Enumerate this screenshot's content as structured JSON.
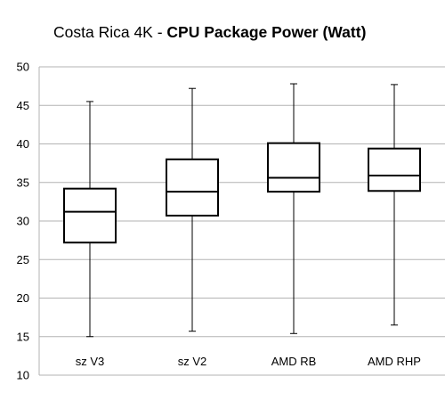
{
  "title": {
    "regular": "Costa Rica 4K - ",
    "bold": "CPU Package Power (Watt)"
  },
  "chart_data": {
    "type": "boxplot",
    "title": "Costa Rica 4K - CPU Package Power (Watt)",
    "xlabel": "",
    "ylabel": "",
    "ylim": [
      10,
      50
    ],
    "yticks": [
      10,
      15,
      20,
      25,
      30,
      35,
      40,
      45,
      50
    ],
    "grid": true,
    "legend": "none",
    "categories": [
      "sz V3",
      "sz V2",
      "AMD RB",
      "AMD RHP"
    ],
    "boxes": [
      {
        "min": 15.0,
        "q1": 27.2,
        "median": 31.2,
        "q3": 34.2,
        "max": 45.5
      },
      {
        "min": 15.7,
        "q1": 30.7,
        "median": 33.8,
        "q3": 38.0,
        "max": 47.2
      },
      {
        "min": 15.4,
        "q1": 33.8,
        "median": 35.6,
        "q3": 40.1,
        "max": 47.8
      },
      {
        "min": 16.5,
        "q1": 33.9,
        "median": 35.9,
        "q3": 39.4,
        "max": 47.7
      }
    ],
    "colors": {
      "grid": "#b3b3b3",
      "box_stroke": "#000000",
      "box_fill": "#ffffff"
    }
  }
}
